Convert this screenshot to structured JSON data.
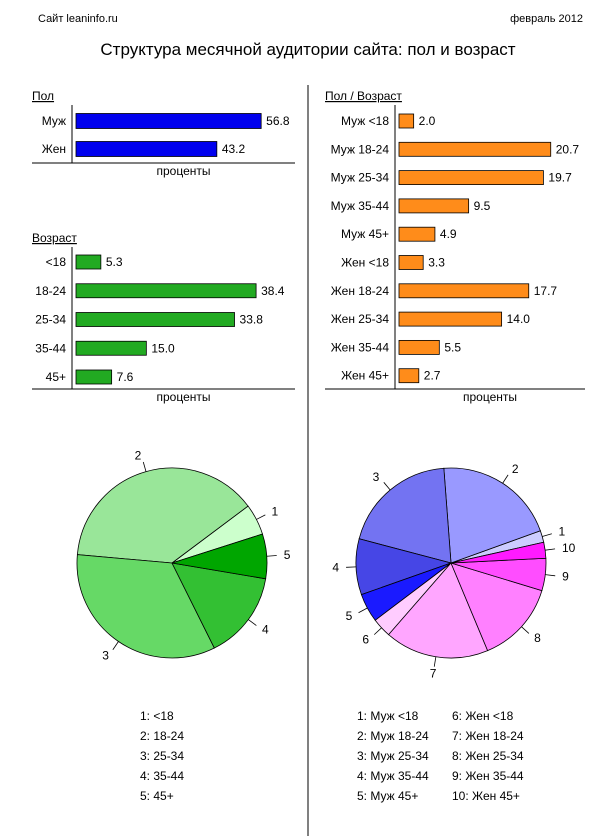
{
  "header": {
    "site": "Сайт leaninfo.ru",
    "date": "февраль 2012",
    "title": "Структура месячной аудитории сайта: пол и возраст"
  },
  "colors": {
    "sex": "#0000ee",
    "age": "#22aa22",
    "sexage": "#ff8c1a",
    "pie_age": [
      "#ccffcc",
      "#99e699",
      "#66d966",
      "#33c033",
      "#00a600"
    ],
    "pie_sexage": [
      "#ccccff",
      "#9999ff",
      "#7373f2",
      "#4646e6",
      "#1a1aff",
      "#ffccff",
      "#ffa6ff",
      "#ff80ff",
      "#ff4dff",
      "#ff1aff"
    ]
  },
  "chart_data": [
    {
      "id": "sex",
      "type": "bar",
      "orientation": "horizontal",
      "title": "Пол",
      "xlabel": "проценты",
      "categories": [
        "Муж",
        "Жен"
      ],
      "values": [
        56.8,
        43.2
      ],
      "value_labels": [
        "56.8",
        "43.2"
      ],
      "xlim": [
        0,
        60
      ]
    },
    {
      "id": "age",
      "type": "bar",
      "orientation": "horizontal",
      "title": "Возраст",
      "xlabel": "проценты",
      "categories": [
        "<18",
        "18-24",
        "25-34",
        "35-44",
        "45+"
      ],
      "values": [
        5.3,
        38.4,
        33.8,
        15.0,
        7.6
      ],
      "value_labels": [
        "5.3",
        "38.4",
        "33.8",
        "15.0",
        "7.6"
      ],
      "xlim": [
        0,
        40
      ]
    },
    {
      "id": "sexage",
      "type": "bar",
      "orientation": "horizontal",
      "title": "Пол / Возраст",
      "xlabel": "проценты",
      "categories": [
        "Муж <18",
        "Муж 18-24",
        "Муж 25-34",
        "Муж 35-44",
        "Муж 45+",
        "Жен <18",
        "Жен 18-24",
        "Жен 25-34",
        "Жен 35-44",
        "Жен 45+"
      ],
      "values": [
        2.0,
        20.7,
        19.7,
        9.5,
        4.9,
        3.3,
        17.7,
        14.0,
        5.5,
        2.7
      ],
      "value_labels": [
        "2.0",
        "20.7",
        "19.7",
        "9.5",
        "4.9",
        "3.3",
        "17.7",
        "14.0",
        "5.5",
        "2.7"
      ],
      "xlim": [
        0,
        22
      ]
    },
    {
      "id": "pie_age",
      "type": "pie",
      "slice_labels": [
        "1",
        "2",
        "3",
        "4",
        "5"
      ],
      "values": [
        5.3,
        38.4,
        33.8,
        15.0,
        7.6
      ],
      "legend": [
        "1: <18",
        "2: 18-24",
        "3: 25-34",
        "4: 35-44",
        "5: 45+"
      ]
    },
    {
      "id": "pie_sexage",
      "type": "pie",
      "slice_labels": [
        "1",
        "2",
        "3",
        "4",
        "5",
        "6",
        "7",
        "8",
        "9",
        "10"
      ],
      "values": [
        2.0,
        20.7,
        19.7,
        9.5,
        4.9,
        3.3,
        17.7,
        14.0,
        5.5,
        2.7
      ],
      "legend": [
        "1: Муж <18",
        "2: Муж 18-24",
        "3: Муж 25-34",
        "4: Муж 35-44",
        "5: Муж 45+",
        "6: Жен <18",
        "7: Жен 18-24",
        "8: Жен 25-34",
        "9: Жен 35-44",
        "10: Жен 45+"
      ]
    }
  ]
}
